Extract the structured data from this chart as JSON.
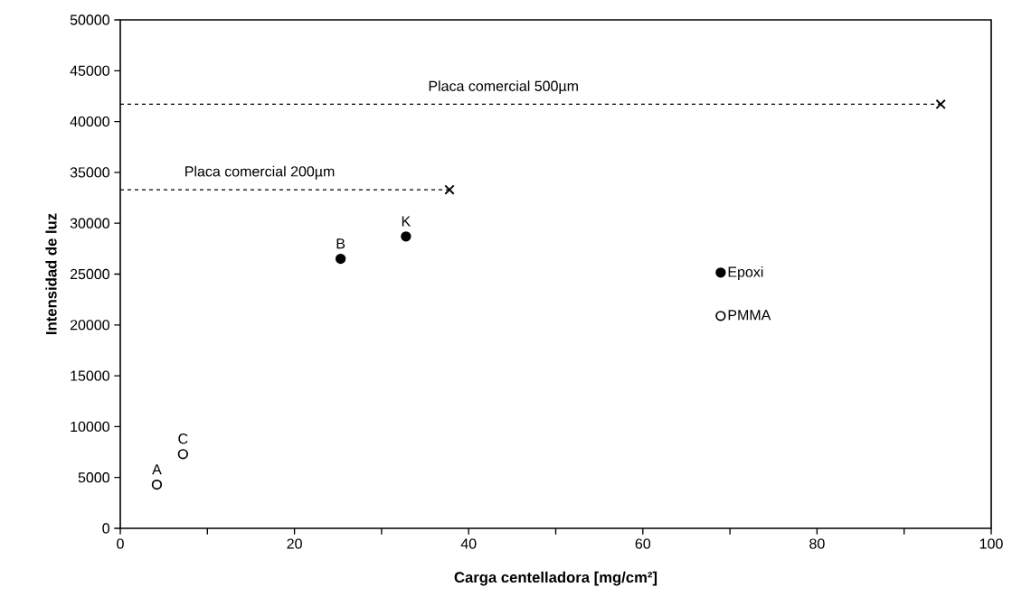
{
  "chart_data": {
    "type": "scatter",
    "xlabel": "Carga centelladora [mg/cm²]",
    "ylabel": "Intensidad de luz",
    "xlim": [
      0,
      100
    ],
    "xticks": [
      0,
      {
        "value": 10,
        "label": null
      },
      20,
      {
        "value": 30,
        "label": null
      },
      40,
      {
        "value": 50,
        "label": null
      },
      60,
      {
        "value": 70,
        "label": null
      },
      80,
      {
        "value": 90,
        "label": null
      },
      100
    ],
    "ylim": [
      0,
      50000
    ],
    "yticks": [
      0,
      5000,
      10000,
      15000,
      20000,
      25000,
      30000,
      35000,
      40000,
      45000,
      50000
    ],
    "grid": false,
    "legend": "right",
    "series": [
      {
        "name": "Epoxi",
        "marker": "circle",
        "color": "#000000",
        "x": [
          25.3,
          32.8
        ],
        "values": [
          26500,
          28700
        ]
      },
      {
        "name": "PMMA",
        "marker": "circle",
        "color": "#000000",
        "x": [
          4.2,
          7.2
        ],
        "values": [
          4300,
          7300
        ]
      },
      {
        "type": "line",
        "line_style": "dashed",
        "marker": "none",
        "color": "#000000",
        "x": [
          0,
          37.8
        ],
        "values": [
          33300,
          33300
        ]
      },
      {
        "type": "line",
        "line_style": "dashed",
        "marker": "none",
        "color": "#000000",
        "x": [
          0,
          94.2
        ],
        "values": [
          41700,
          41700
        ]
      },
      {
        "marker": "cross",
        "color": "#000000",
        "x": [
          37.8,
          94.2
        ],
        "values": [
          33300,
          41700
        ]
      }
    ],
    "annotations": [
      {
        "text": "A",
        "x": 4.2,
        "y": 4300
      },
      {
        "text": "C",
        "x": 7.2,
        "y": 7300
      },
      {
        "text": "B",
        "x": 25.3,
        "y": 26500
      },
      {
        "text": "K",
        "x": 32.8,
        "y": 28700
      },
      {
        "text": "Placa comercial 200µm",
        "x": 16,
        "y": 33300
      },
      {
        "text": "Placa comercial 500µm",
        "x": 44,
        "y": 41700
      }
    ]
  }
}
